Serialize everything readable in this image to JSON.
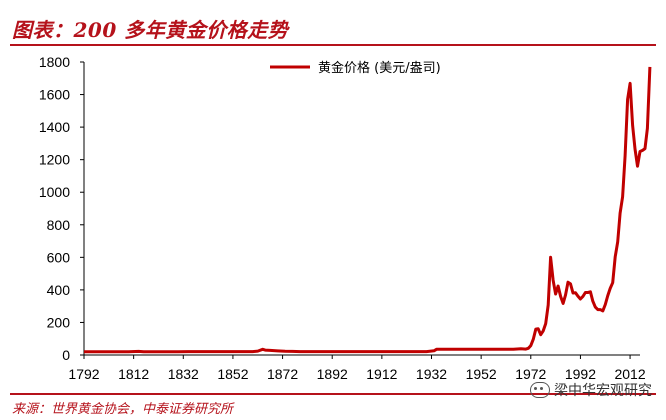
{
  "header": {
    "title": "图表：200 多年黄金价格走势"
  },
  "footer": {
    "source": "来源：世界黄金协会，中泰证券研究所",
    "watermark": "梁中华宏观研究"
  },
  "chart_data": {
    "type": "line",
    "title": "",
    "xlabel": "",
    "ylabel": "",
    "xlim": [
      1792,
      2016
    ],
    "ylim": [
      0,
      1800
    ],
    "grid": false,
    "legend_position": "top-center",
    "y_ticks": [
      0,
      200,
      400,
      600,
      800,
      1000,
      1200,
      1400,
      1600,
      1800
    ],
    "x_ticks": [
      1792,
      1812,
      1832,
      1852,
      1872,
      1892,
      1912,
      1932,
      1952,
      1972,
      1992,
      2012
    ],
    "series": [
      {
        "name": "黄金价格 (美元/盎司)",
        "color": "#c00000",
        "points": [
          [
            1792,
            19.39
          ],
          [
            1800,
            19.39
          ],
          [
            1810,
            19.39
          ],
          [
            1814,
            22
          ],
          [
            1816,
            20
          ],
          [
            1820,
            19.39
          ],
          [
            1830,
            19.39
          ],
          [
            1834,
            20.67
          ],
          [
            1840,
            20.67
          ],
          [
            1850,
            20.67
          ],
          [
            1860,
            20.67
          ],
          [
            1862,
            24
          ],
          [
            1864,
            35
          ],
          [
            1865,
            30
          ],
          [
            1867,
            28
          ],
          [
            1870,
            25
          ],
          [
            1873,
            23
          ],
          [
            1876,
            22
          ],
          [
            1879,
            20.67
          ],
          [
            1890,
            20.67
          ],
          [
            1900,
            20.67
          ],
          [
            1910,
            20.67
          ],
          [
            1920,
            20.67
          ],
          [
            1930,
            20.67
          ],
          [
            1933,
            26
          ],
          [
            1934,
            35
          ],
          [
            1940,
            35
          ],
          [
            1950,
            35
          ],
          [
            1955,
            35
          ],
          [
            1960,
            35
          ],
          [
            1965,
            35
          ],
          [
            1968,
            39
          ],
          [
            1970,
            36
          ],
          [
            1971,
            41
          ],
          [
            1972,
            58
          ],
          [
            1973,
            97
          ],
          [
            1974,
            159
          ],
          [
            1975,
            161
          ],
          [
            1976,
            125
          ],
          [
            1977,
            148
          ],
          [
            1978,
            193
          ],
          [
            1979,
            307
          ],
          [
            1980,
            600
          ],
          [
            1981,
            460
          ],
          [
            1982,
            375
          ],
          [
            1983,
            424
          ],
          [
            1984,
            360
          ],
          [
            1985,
            317
          ],
          [
            1986,
            368
          ],
          [
            1987,
            447
          ],
          [
            1988,
            437
          ],
          [
            1989,
            381
          ],
          [
            1990,
            383
          ],
          [
            1991,
            362
          ],
          [
            1992,
            344
          ],
          [
            1993,
            360
          ],
          [
            1994,
            384
          ],
          [
            1995,
            384
          ],
          [
            1996,
            388
          ],
          [
            1997,
            331
          ],
          [
            1998,
            294
          ],
          [
            1999,
            279
          ],
          [
            2000,
            279
          ],
          [
            2001,
            271
          ],
          [
            2002,
            310
          ],
          [
            2003,
            363
          ],
          [
            2004,
            409
          ],
          [
            2005,
            444
          ],
          [
            2006,
            603
          ],
          [
            2007,
            695
          ],
          [
            2008,
            872
          ],
          [
            2009,
            972
          ],
          [
            2010,
            1224
          ],
          [
            2011,
            1571
          ],
          [
            2012,
            1669
          ],
          [
            2013,
            1411
          ],
          [
            2014,
            1266
          ],
          [
            2015,
            1160
          ],
          [
            2016,
            1250
          ],
          [
            2017,
            1257
          ],
          [
            2018,
            1268
          ],
          [
            2019,
            1393
          ],
          [
            2020,
            1770
          ]
        ]
      }
    ]
  }
}
